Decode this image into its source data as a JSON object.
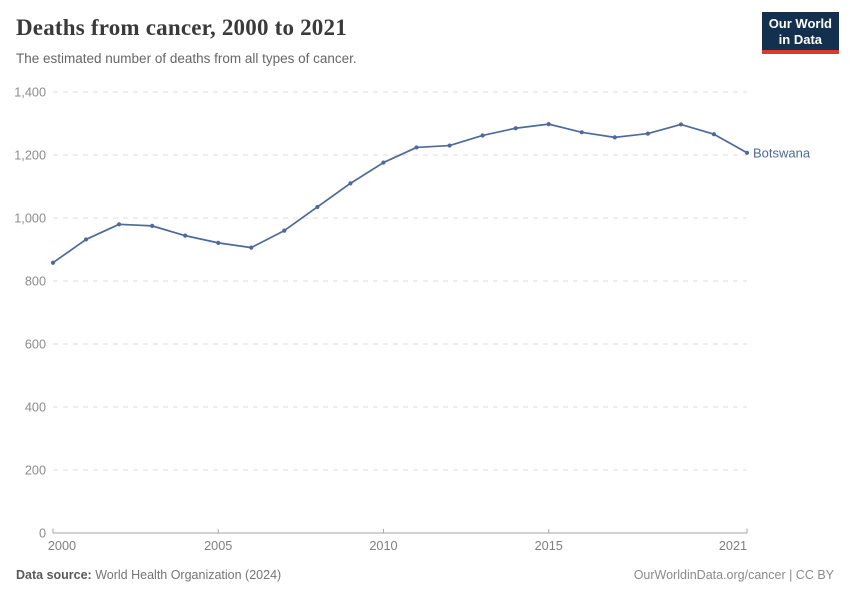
{
  "header": {
    "title": "Deaths from cancer, 2000 to 2021",
    "subtitle": "The estimated number of deaths from all types of cancer.",
    "logo_line1": "Our World",
    "logo_line2": "in Data",
    "logo_bg": "#14304f",
    "logo_accent": "#d93a2b"
  },
  "chart_data": {
    "type": "line",
    "title": "Deaths from cancer, 2000 to 2021",
    "subtitle": "The estimated number of deaths from all types of cancer.",
    "series": [
      {
        "name": "Botswana",
        "color": "#4C6A9C",
        "x": [
          2000,
          2001,
          2002,
          2003,
          2004,
          2005,
          2006,
          2007,
          2008,
          2009,
          2010,
          2011,
          2012,
          2013,
          2014,
          2015,
          2016,
          2017,
          2018,
          2019,
          2020,
          2021
        ],
        "values": [
          858,
          932,
          980,
          975,
          944,
          921,
          906,
          960,
          1035,
          1110,
          1176,
          1224,
          1230,
          1262,
          1285,
          1298,
          1272,
          1256,
          1268,
          1297,
          1266,
          1207
        ]
      }
    ],
    "xlim": [
      2000,
      2021
    ],
    "ylim": [
      0,
      1400
    ],
    "xtick_years": [
      2000,
      2005,
      2010,
      2015,
      2021
    ],
    "xtick_labels": [
      "2000",
      "2005",
      "2010",
      "2015",
      "2021"
    ],
    "ytick_values": [
      0,
      200,
      400,
      600,
      800,
      1000,
      1200,
      1400
    ],
    "ytick_labels": [
      "0",
      "200",
      "400",
      "600",
      "800",
      "1,000",
      "1,200",
      "1,400"
    ],
    "grid": "horizontal-dashed",
    "legend_position": "end-of-line",
    "grid_color": "#dcdcdc",
    "axis_color": "#a6a6a6",
    "tick_label_color": "#8c8c8c"
  },
  "footer": {
    "source_label": "Data source:",
    "source_value": "World Health Organization (2024)",
    "credit": "OurWorldinData.org/cancer | CC BY"
  }
}
